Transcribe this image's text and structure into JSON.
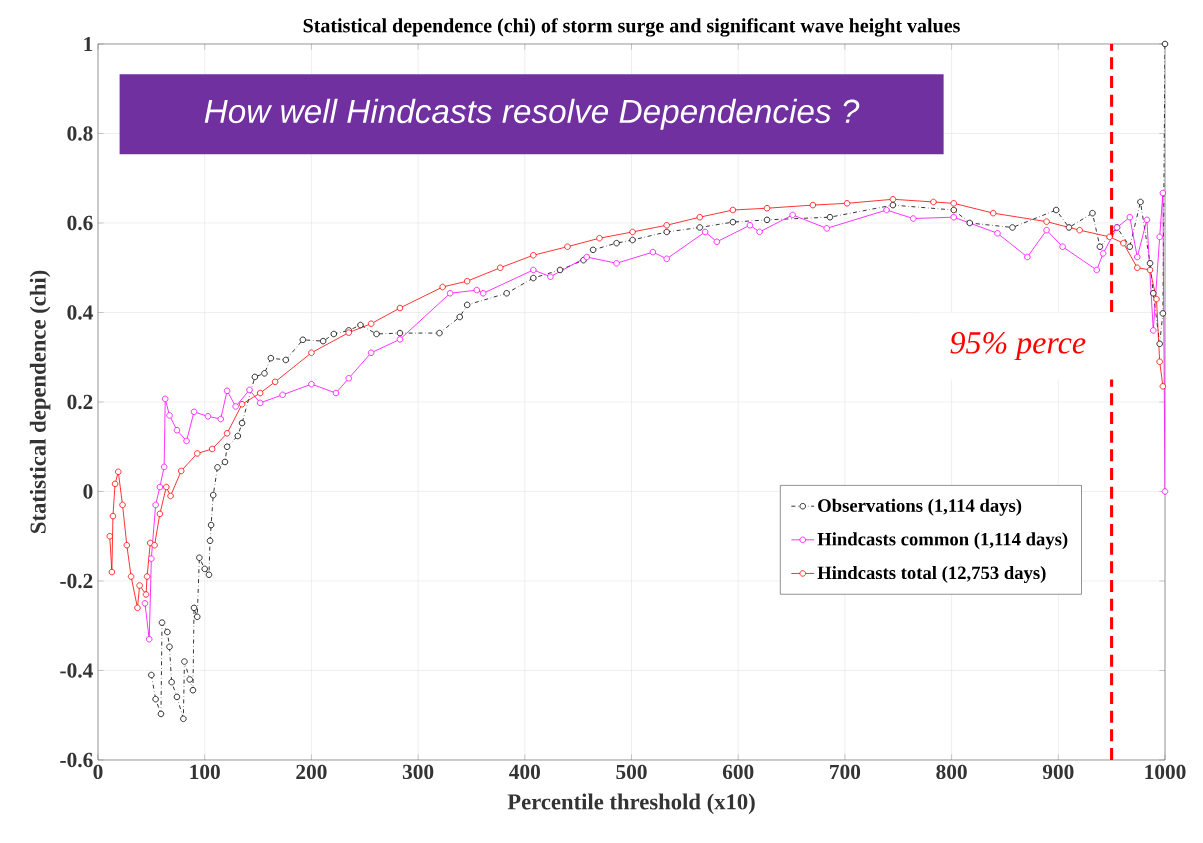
{
  "chart_data": {
    "type": "line",
    "title": "Statistical dependence (chi) of storm surge and significant wave height values",
    "xlabel": "Percentile threshold (x10)",
    "ylabel": "Statistical dependence (chi)",
    "annotations": [
      "How well Hindcasts resolve Dependencies ?"
    ],
    "xlim": [
      0,
      1000
    ],
    "ylim": [
      -0.6,
      1
    ],
    "xticks": [
      0,
      100,
      200,
      300,
      400,
      500,
      600,
      700,
      800,
      900,
      1000
    ],
    "yticks": [
      -0.6,
      -0.4,
      -0.2,
      0,
      0.2,
      0.4,
      0.6,
      0.8,
      1
    ],
    "grid": true,
    "legend": "right",
    "marker": "circle",
    "ref_lines": [
      {
        "axis": "x",
        "value": 950,
        "label": "95% perce",
        "color": "#ff0000",
        "line_style": "dashed"
      }
    ],
    "series": [
      {
        "name": "Observations (1,114 days)",
        "color": "#000000",
        "line_style": "dashed",
        "x": [
          50,
          54,
          59,
          60,
          65,
          67,
          69,
          74,
          80,
          81,
          86,
          89,
          90,
          93,
          95,
          100,
          104,
          105,
          106,
          108,
          112,
          119,
          121,
          131,
          135,
          147,
          156,
          162,
          176,
          192,
          211,
          221,
          235,
          246,
          261,
          283,
          320,
          339,
          346,
          383,
          408,
          433,
          455,
          464,
          486,
          501,
          533,
          564,
          595,
          627,
          686,
          745,
          802,
          817,
          857,
          898,
          910,
          932,
          939,
          955,
          967,
          977,
          986,
          989,
          995,
          998,
          1000
        ],
        "values": [
          -0.41,
          -0.464,
          -0.497,
          -0.293,
          -0.314,
          -0.347,
          -0.426,
          -0.459,
          -0.508,
          -0.38,
          -0.42,
          -0.444,
          -0.26,
          -0.28,
          -0.148,
          -0.173,
          -0.186,
          -0.11,
          -0.075,
          -0.008,
          0.054,
          0.066,
          0.1,
          0.124,
          0.153,
          0.256,
          0.264,
          0.298,
          0.294,
          0.339,
          0.336,
          0.352,
          0.36,
          0.372,
          0.352,
          0.354,
          0.354,
          0.39,
          0.417,
          0.443,
          0.477,
          0.495,
          0.517,
          0.54,
          0.555,
          0.562,
          0.58,
          0.59,
          0.602,
          0.607,
          0.613,
          0.64,
          0.629,
          0.6,
          0.59,
          0.629,
          0.59,
          0.622,
          0.547,
          0.59,
          0.547,
          0.647,
          0.51,
          0.443,
          0.33,
          0.398,
          1.0
        ]
      },
      {
        "name": "Hindcasts common (1,114 days)",
        "color": "#ff00ff",
        "line_style": "solid",
        "x": [
          44,
          48,
          50,
          54,
          58,
          62,
          63,
          67,
          74,
          83,
          90,
          103,
          115,
          121,
          129,
          142,
          152,
          173,
          200,
          223,
          235,
          256,
          283,
          330,
          355,
          361,
          408,
          424,
          458,
          486,
          520,
          533,
          569,
          580,
          611,
          620,
          651,
          683,
          739,
          764,
          802,
          843,
          871,
          889,
          904,
          936,
          942,
          955,
          967,
          974,
          983,
          989,
          995,
          998,
          1000
        ],
        "values": [
          -0.25,
          -0.33,
          -0.15,
          -0.03,
          0.01,
          0.055,
          0.207,
          0.17,
          0.137,
          0.113,
          0.178,
          0.168,
          0.162,
          0.225,
          0.19,
          0.227,
          0.198,
          0.216,
          0.24,
          0.22,
          0.253,
          0.31,
          0.34,
          0.443,
          0.45,
          0.443,
          0.495,
          0.48,
          0.524,
          0.51,
          0.535,
          0.52,
          0.58,
          0.558,
          0.595,
          0.58,
          0.618,
          0.588,
          0.629,
          0.61,
          0.613,
          0.577,
          0.524,
          0.584,
          0.547,
          0.495,
          0.532,
          0.59,
          0.613,
          0.524,
          0.607,
          0.36,
          0.569,
          0.667,
          0
        ]
      },
      {
        "name": "Hindcasts total (12,753 days)",
        "color": "#ff0000",
        "line_style": "solid",
        "x": [
          11,
          13,
          14,
          16,
          19,
          23,
          27,
          31,
          37,
          39,
          45,
          46,
          49,
          53,
          58,
          64,
          68,
          78,
          93,
          107,
          121,
          135,
          152,
          166,
          200,
          235,
          256,
          283,
          323,
          346,
          377,
          408,
          440,
          470,
          501,
          533,
          564,
          595,
          627,
          670,
          702,
          745,
          783,
          802,
          839,
          889,
          920,
          948,
          961,
          974,
          986,
          992,
          995,
          998
        ],
        "values": [
          -0.1,
          -0.18,
          -0.055,
          0.017,
          0.044,
          -0.03,
          -0.12,
          -0.19,
          -0.26,
          -0.21,
          -0.23,
          -0.19,
          -0.115,
          -0.12,
          -0.05,
          0.01,
          -0.01,
          0.046,
          0.085,
          0.095,
          0.13,
          0.195,
          0.22,
          0.245,
          0.31,
          0.355,
          0.375,
          0.41,
          0.457,
          0.47,
          0.5,
          0.528,
          0.547,
          0.566,
          0.58,
          0.595,
          0.613,
          0.629,
          0.633,
          0.64,
          0.644,
          0.653,
          0.647,
          0.644,
          0.622,
          0.603,
          0.584,
          0.569,
          0.555,
          0.5,
          0.495,
          0.43,
          0.29,
          0.235
        ]
      }
    ]
  }
}
